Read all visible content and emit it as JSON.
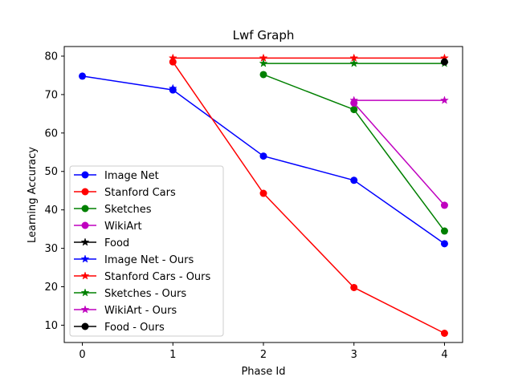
{
  "chart_data": {
    "type": "line",
    "title": "Lwf Graph",
    "xlabel": "Phase Id",
    "ylabel": "Learning Accuracy",
    "xlim": [
      -0.2,
      4.2
    ],
    "ylim": [
      5.5,
      82.5
    ],
    "xticks": [
      0,
      1,
      2,
      3,
      4
    ],
    "yticks": [
      10,
      20,
      30,
      40,
      50,
      60,
      70,
      80
    ],
    "grid": false,
    "legend_position": "lower-left",
    "series": [
      {
        "name": "Image Net",
        "color": "#0000ff",
        "marker": "circle",
        "x": [
          0,
          1,
          2,
          3,
          4
        ],
        "y": [
          74.8,
          71.2,
          54.0,
          47.7,
          31.2
        ]
      },
      {
        "name": "Stanford Cars",
        "color": "#ff0000",
        "marker": "circle",
        "x": [
          1,
          2,
          3,
          4
        ],
        "y": [
          78.5,
          44.3,
          19.8,
          7.9
        ]
      },
      {
        "name": "Sketches",
        "color": "#008000",
        "marker": "circle",
        "x": [
          2,
          3,
          4
        ],
        "y": [
          75.2,
          66.1,
          34.5
        ]
      },
      {
        "name": "WikiArt",
        "color": "#bf00bf",
        "marker": "circle",
        "x": [
          3,
          4
        ],
        "y": [
          67.8,
          41.2
        ]
      },
      {
        "name": "Food",
        "color": "#000000",
        "marker": "star",
        "x": [],
        "y": []
      },
      {
        "name": "Image Net - Ours",
        "color": "#0000ff",
        "marker": "star",
        "x": [
          1
        ],
        "y": [
          71.6
        ]
      },
      {
        "name": "Stanford Cars - Ours",
        "color": "#ff0000",
        "marker": "star",
        "x": [
          1,
          2,
          3,
          4
        ],
        "y": [
          79.5,
          79.5,
          79.5,
          79.5
        ]
      },
      {
        "name": "Sketches - Ours",
        "color": "#008000",
        "marker": "star",
        "x": [
          2,
          3,
          4
        ],
        "y": [
          78.1,
          78.1,
          78.1
        ]
      },
      {
        "name": "WikiArt - Ours",
        "color": "#bf00bf",
        "marker": "star",
        "x": [
          3,
          4
        ],
        "y": [
          68.5,
          68.5
        ]
      },
      {
        "name": "Food - Ours",
        "color": "#000000",
        "marker": "circle",
        "x": [
          4
        ],
        "y": [
          78.5
        ]
      }
    ]
  }
}
